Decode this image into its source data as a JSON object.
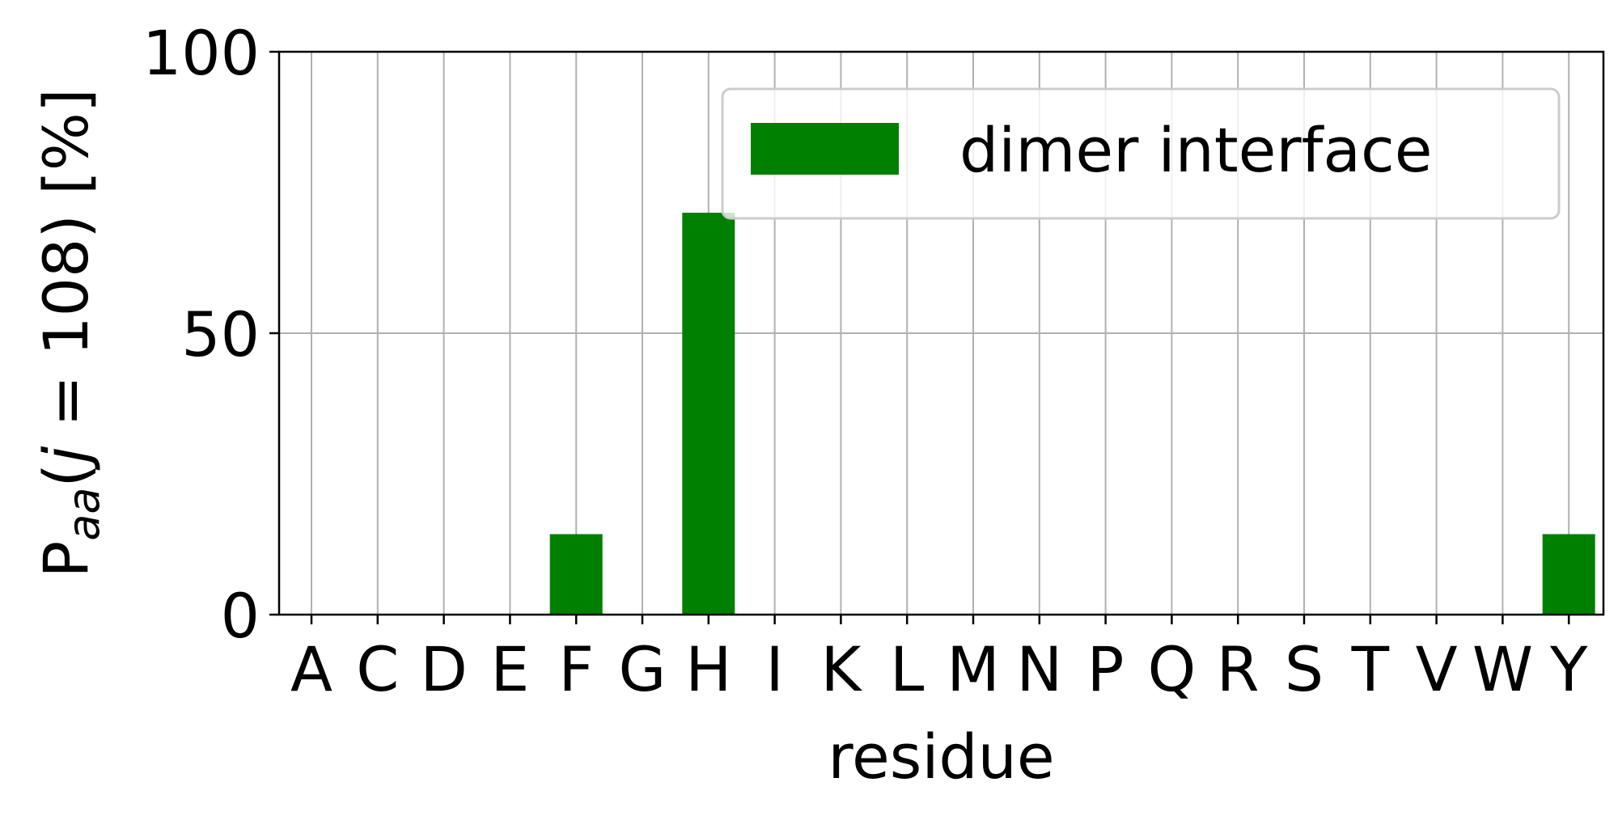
{
  "chart_data": {
    "type": "bar",
    "categories": [
      "A",
      "C",
      "D",
      "E",
      "F",
      "G",
      "H",
      "I",
      "K",
      "L",
      "M",
      "N",
      "P",
      "Q",
      "R",
      "S",
      "T",
      "V",
      "W",
      "Y"
    ],
    "series": [
      {
        "name": "dimer interface",
        "color": "#008000",
        "values": [
          0,
          0,
          0,
          0,
          14.3,
          0,
          71.4,
          0,
          0,
          0,
          0,
          0,
          0,
          0,
          0,
          0,
          0,
          0,
          0,
          14.3
        ]
      }
    ],
    "xlabel": "residue",
    "ylabel": {
      "main": "P",
      "sub": "aa",
      "open": "(",
      "var": "j",
      "rest": " = 108) [%]"
    },
    "ylim": [
      0,
      100
    ],
    "yticks": [
      "0",
      "50",
      "100"
    ],
    "grid": true,
    "legend_position": "top-right"
  }
}
